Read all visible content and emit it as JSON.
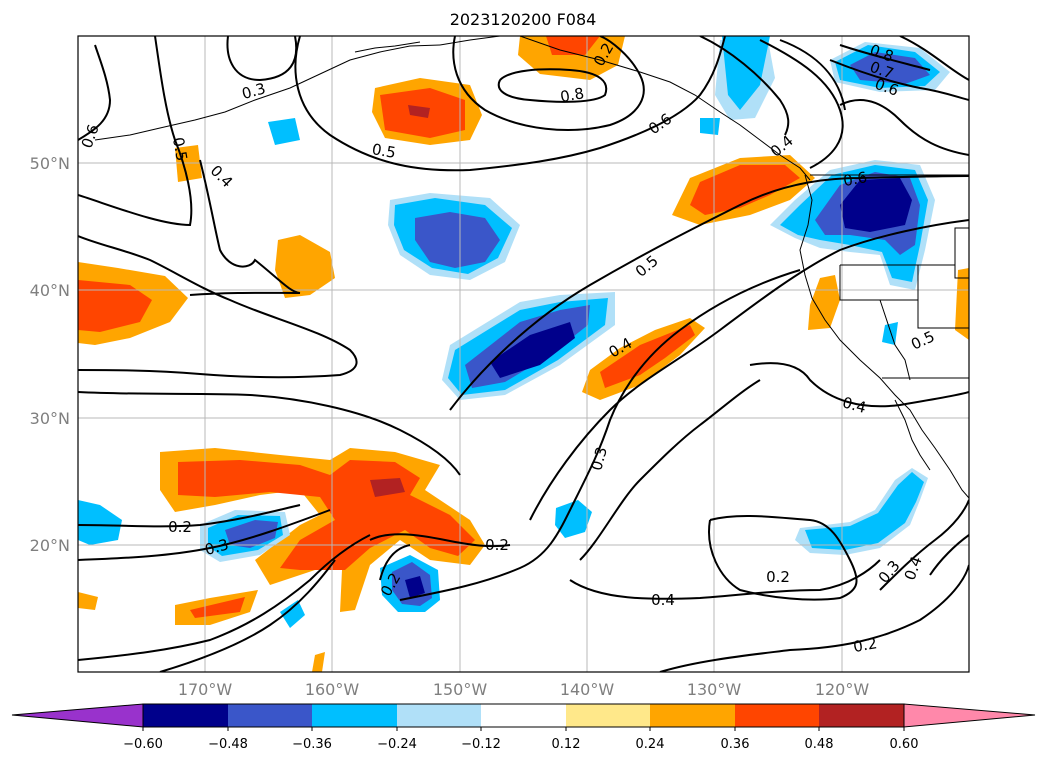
{
  "title": "2023120200 F084",
  "lat_labels": [
    "50°N",
    "40°N",
    "30°N",
    "20°N"
  ],
  "lon_labels": [
    "170°W",
    "160°W",
    "150°W",
    "140°W",
    "130°W",
    "120°W"
  ],
  "colorbar": {
    "tick_labels": [
      "−0.60",
      "−0.48",
      "−0.36",
      "−0.24",
      "−0.12",
      "0.12",
      "0.24",
      "0.36",
      "0.48",
      "0.60"
    ],
    "colors": [
      "#9932cc",
      "#00008b",
      "#3a56c9",
      "#00bfff",
      "#b0e0f8",
      "#ffffff",
      "#ffe88a",
      "#ffa500",
      "#ff4500",
      "#b22222",
      "#ff88aa"
    ]
  },
  "contour_labels": [
    "0.3",
    "0.6",
    "0.5",
    "0.4",
    "0.5",
    "0.8",
    "0.6",
    "0.8",
    "0.7",
    "0.6",
    "0.4",
    "0.6",
    "0.5",
    "0.4",
    "0.5",
    "0.4",
    "0.3",
    "0.2",
    "0.3",
    "0.2",
    "0.2",
    "0.2",
    "0.4",
    "0.2",
    "0.3",
    "0.4",
    "0.2"
  ]
}
